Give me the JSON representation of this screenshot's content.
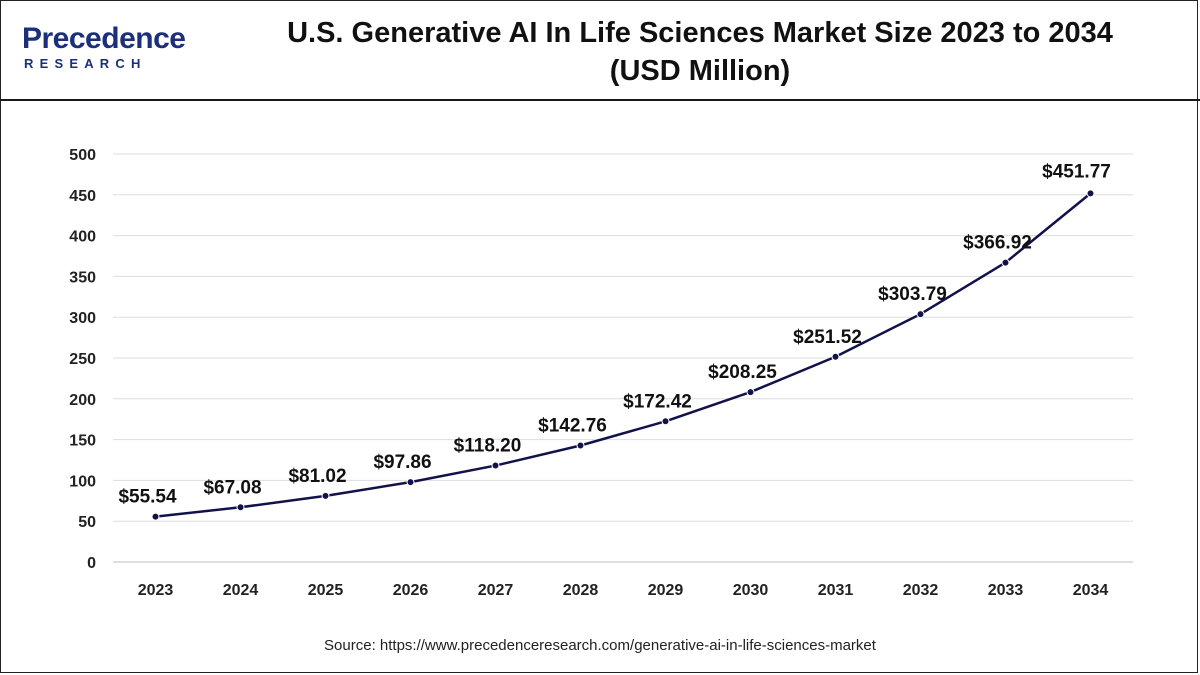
{
  "brand": {
    "name": "Precedence",
    "tagline": "RESEARCH"
  },
  "source_text": "Source: https://www.precedenceresearch.com/generative-ai-in-life-sciences-market",
  "colors": {
    "line": "#12124a",
    "grid": "#dddddd",
    "brand": "#1b2f7a"
  },
  "chart_data": {
    "type": "line",
    "title": "U.S. Generative AI In Life Sciences Market Size 2023 to 2034",
    "subtitle": "(USD Million)",
    "categories": [
      "2023",
      "2024",
      "2025",
      "2026",
      "2027",
      "2028",
      "2029",
      "2030",
      "2031",
      "2032",
      "2033",
      "2034"
    ],
    "values": [
      55.54,
      67.08,
      81.02,
      97.86,
      118.2,
      142.76,
      172.42,
      208.25,
      251.52,
      303.79,
      366.92,
      451.77
    ],
    "data_labels": [
      "$55.54",
      "$67.08",
      "$81.02",
      "$97.86",
      "$118.20",
      "$142.76",
      "$172.42",
      "$208.25",
      "$251.52",
      "$303.79",
      "$366.92",
      "$451.77"
    ],
    "yticks": [
      0,
      50,
      100,
      150,
      200,
      250,
      300,
      350,
      400,
      450,
      500
    ],
    "ylim": [
      0,
      500
    ],
    "xlabel": "",
    "ylabel": "",
    "grid": true,
    "legend": "none"
  }
}
